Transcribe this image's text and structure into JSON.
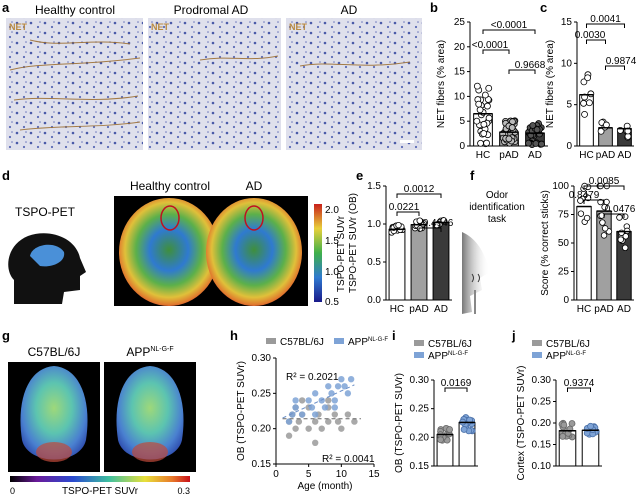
{
  "panel_letters": {
    "a": "a",
    "b": "b",
    "c": "c",
    "d": "d",
    "e": "e",
    "f": "f",
    "g": "g",
    "h": "h",
    "i": "i",
    "j": "j"
  },
  "panel_a": {
    "titles": [
      "Healthy control",
      "Prodromal AD",
      "AD"
    ],
    "net_label": "NET"
  },
  "panel_b": {
    "ylabel": "NET fibers (% area)",
    "yticks": [
      "0",
      "5",
      "10",
      "15",
      "20",
      "25"
    ],
    "categories": [
      "HC",
      "pAD",
      "AD"
    ],
    "pvalues": [
      "<0.0001",
      "<0.0001",
      "0.9668"
    ]
  },
  "panel_c": {
    "ylabel": "NET fibers (% area)",
    "yticks": [
      "0",
      "5",
      "10",
      "15"
    ],
    "categories": [
      "HC",
      "pAD",
      "AD"
    ],
    "pvalues": [
      "0.0041",
      "0.0030",
      "0.9874"
    ]
  },
  "panel_d": {
    "label": "TSPO-PET",
    "titles": [
      "Healthy control",
      "AD"
    ],
    "colorbar_label": "TSPO-PET SUVr",
    "colorbar_ticks": [
      "2.0",
      "1.5",
      "1.0",
      "0.5"
    ]
  },
  "panel_e": {
    "ylabel": "TSPO-PET SUVr (OB)",
    "yticks": [
      "0.0",
      "0.5",
      "1.0",
      "1.5"
    ],
    "categories": [
      "HC",
      "pAD",
      "AD"
    ],
    "pvalues": [
      "0.0012",
      "0.0221",
      "0.4946"
    ]
  },
  "panel_f": {
    "label": "Odor identification task",
    "label_lines": [
      "Odor",
      "identification",
      "task"
    ],
    "ylabel": "Score (% correct sticks)",
    "yticks": [
      "0",
      "25",
      "50",
      "75",
      "100"
    ],
    "categories": [
      "HC",
      "pAD",
      "AD"
    ],
    "pvalues": [
      "0.0085",
      "0.8479",
      "0.0476"
    ]
  },
  "panel_g": {
    "titles": [
      "C57BL/6J",
      "APP"
    ],
    "title_sup": "NL-G-F",
    "colorbar_label": "TSPO-PET SUVr",
    "colorbar_min": "0",
    "colorbar_max": "0.3"
  },
  "panel_h": {
    "legend": [
      "C57BL/6J",
      "APP"
    ],
    "legend_sup": "NL-G-F",
    "ylabel": "OB (TSPO-PET SUVr)",
    "xlabel": "Age (month)",
    "xticks": [
      "0",
      "5",
      "10",
      "15"
    ],
    "yticks": [
      "0.15",
      "0.20",
      "0.25",
      "0.30"
    ],
    "r2_app": "R² = 0.2021",
    "r2_wt": "R² = 0.0041"
  },
  "panel_i": {
    "legend": [
      "C57BL/6J",
      "APP"
    ],
    "legend_sup": "NL-G-F",
    "ylabel": "OB (TSPO-PET SUVr)",
    "yticks": [
      "0.15",
      "0.20",
      "0.25",
      "0.30"
    ],
    "pvalue": "0.0169"
  },
  "panel_j": {
    "legend": [
      "C57BL/6J",
      "APP"
    ],
    "legend_sup": "NL-G-F",
    "ylabel": "Cortex (TSPO-PET SUVr)",
    "yticks": [
      "0.10",
      "0.15",
      "0.20",
      "0.25",
      "0.30"
    ],
    "pvalue": "0.9374"
  },
  "colors": {
    "wt": "#9a9a9a",
    "app": "#7ea3d6",
    "hc_bar": "#ffffff",
    "pad_bar": "#a0a0a0",
    "ad_bar": "#3a3a3a",
    "net": "#b9893f"
  },
  "chart_data": [
    {
      "type": "bar",
      "panel": "b",
      "categories": [
        "HC",
        "pAD",
        "AD"
      ],
      "values": [
        6.5,
        2.8,
        2.6
      ],
      "ylabel": "NET fibers (% area)",
      "ylim": [
        0,
        25
      ]
    },
    {
      "type": "bar",
      "panel": "c",
      "categories": [
        "HC",
        "pAD",
        "AD"
      ],
      "values": [
        6.2,
        2.2,
        2.1
      ],
      "ylabel": "NET fibers (% area)",
      "ylim": [
        0,
        15
      ]
    },
    {
      "type": "bar",
      "panel": "e",
      "categories": [
        "HC",
        "pAD",
        "AD"
      ],
      "values": [
        0.93,
        0.99,
        1.02
      ],
      "ylabel": "TSPO-PET SUVr (OB)",
      "ylim": [
        0,
        1.5
      ]
    },
    {
      "type": "bar",
      "panel": "f",
      "categories": [
        "HC",
        "pAD",
        "AD"
      ],
      "values": [
        82,
        78,
        60
      ],
      "ylabel": "Score (% correct sticks)",
      "ylim": [
        0,
        100
      ]
    },
    {
      "type": "scatter",
      "panel": "h",
      "xlabel": "Age (month)",
      "ylabel": "OB (TSPO-PET SUVr)",
      "xlim": [
        0,
        15
      ],
      "ylim": [
        0.15,
        0.3
      ],
      "series": [
        {
          "name": "C57BL/6J",
          "x": [
            2,
            2.5,
            3,
            3,
            3.5,
            4,
            5,
            5,
            6,
            6.5,
            7,
            8,
            8,
            9,
            9.5,
            10,
            11,
            12,
            2,
            4,
            6,
            8
          ],
          "y": [
            0.21,
            0.22,
            0.2,
            0.23,
            0.21,
            0.22,
            0.2,
            0.23,
            0.21,
            0.22,
            0.2,
            0.21,
            0.23,
            0.22,
            0.21,
            0.2,
            0.22,
            0.21,
            0.19,
            0.24,
            0.18,
            0.24
          ]
        },
        {
          "name": "APP",
          "x": [
            2,
            2.5,
            3,
            4,
            5,
            5.5,
            6,
            7,
            7.5,
            8,
            8.5,
            9,
            9.5,
            10,
            11,
            11.5,
            3,
            6,
            9,
            10.5
          ],
          "y": [
            0.21,
            0.22,
            0.23,
            0.22,
            0.24,
            0.23,
            0.25,
            0.24,
            0.23,
            0.26,
            0.25,
            0.24,
            0.26,
            0.27,
            0.25,
            0.27,
            0.24,
            0.22,
            0.23,
            0.26
          ]
        }
      ]
    },
    {
      "type": "bar",
      "panel": "i",
      "categories": [
        "C57BL/6J",
        "APP"
      ],
      "values": [
        0.205,
        0.226
      ],
      "ylabel": "OB (TSPO-PET SUVr)",
      "ylim": [
        0.15,
        0.3
      ]
    },
    {
      "type": "bar",
      "panel": "j",
      "categories": [
        "C57BL/6J",
        "APP"
      ],
      "values": [
        0.182,
        0.183
      ],
      "ylabel": "Cortex (TSPO-PET SUVr)",
      "ylim": [
        0.1,
        0.3
      ]
    }
  ]
}
